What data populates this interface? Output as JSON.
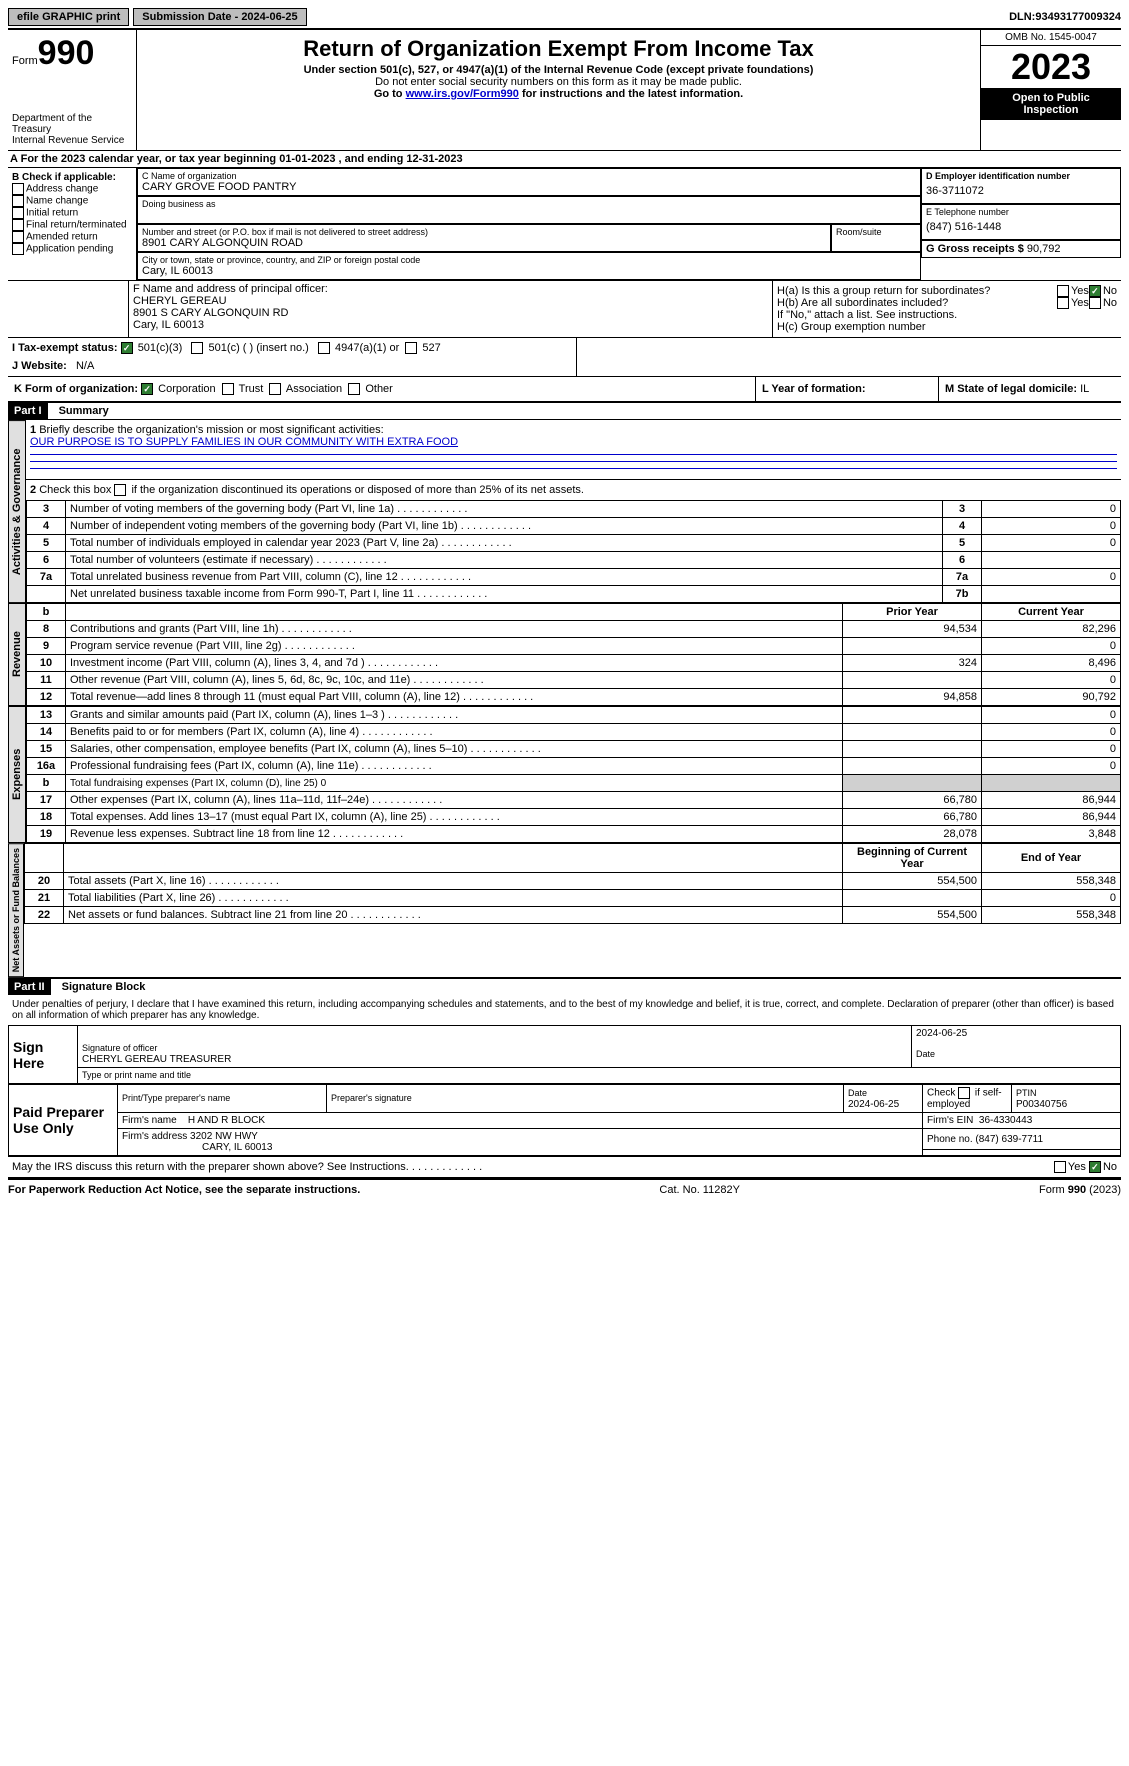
{
  "topbar": {
    "efile": "efile GRAPHIC print",
    "submission": "Submission Date - 2024-06-25",
    "dln_label": "DLN:",
    "dln": "93493177009324"
  },
  "header": {
    "form_label": "Form",
    "form_no": "990",
    "dept": "Department of the Treasury\nInternal Revenue Service",
    "title": "Return of Organization Exempt From Income Tax",
    "sub1": "Under section 501(c), 527, or 4947(a)(1) of the Internal Revenue Code (except private foundations)",
    "sub2": "Do not enter social security numbers on this form as it may be made public.",
    "sub3_pre": "Go to ",
    "sub3_link": "www.irs.gov/Form990",
    "sub3_post": " for instructions and the latest information.",
    "omb": "OMB No. 1545-0047",
    "year": "2023",
    "open": "Open to Public Inspection"
  },
  "line_a": "For the 2023 calendar year, or tax year beginning 01-01-2023   , and ending 12-31-2023",
  "col_b": {
    "title": "B Check if applicable:",
    "opts": [
      "Address change",
      "Name change",
      "Initial return",
      "Final return/terminated",
      "Amended return",
      "Application pending"
    ]
  },
  "col_c": {
    "name_label": "C Name of organization",
    "name": "CARY GROVE FOOD PANTRY",
    "dba_label": "Doing business as",
    "addr_label": "Number and street (or P.O. box if mail is not delivered to street address)",
    "addr": "8901 CARY ALGONQUIN ROAD",
    "room_label": "Room/suite",
    "city_label": "City or town, state or province, country, and ZIP or foreign postal code",
    "city": "Cary, IL  60013"
  },
  "col_d": {
    "ein_label": "D Employer identification number",
    "ein": "36-3711072",
    "tel_label": "E Telephone number",
    "tel": "(847) 516-1448",
    "gross_label": "G Gross receipts $",
    "gross": "90,792"
  },
  "officer": {
    "label": "F  Name and address of principal officer:",
    "name": "CHERYL GEREAU",
    "addr1": "8901 S CARY ALGONQUIN RD",
    "addr2": "Cary, IL  60013"
  },
  "h": {
    "a": "H(a)  Is this a group return for subordinates?",
    "b": "H(b) Are all subordinates included?",
    "b_note": "If \"No,\" attach a list. See instructions.",
    "c": "H(c) Group exemption number",
    "yes": "Yes",
    "no": "No"
  },
  "i": {
    "label": "I  Tax-exempt status:",
    "o1": "501(c)(3)",
    "o2": "501(c) (  ) (insert no.)",
    "o3": "4947(a)(1) or",
    "o4": "527"
  },
  "j": {
    "label": "J  Website:",
    "val": "N/A"
  },
  "k": {
    "label": "K Form of organization:",
    "o1": "Corporation",
    "o2": "Trust",
    "o3": "Association",
    "o4": "Other"
  },
  "l": {
    "label": "L Year of formation:",
    "val": ""
  },
  "m": {
    "label": "M State of legal domicile:",
    "val": "IL"
  },
  "part1": "Part I",
  "part1_title": "Summary",
  "summary": {
    "sections": {
      "gov": "Activities & Governance",
      "rev": "Revenue",
      "exp": "Expenses",
      "net": "Net Assets or Fund Balances"
    },
    "q1_label": "Briefly describe the organization's mission or most significant activities:",
    "q1_val": "OUR PURPOSE IS TO SUPPLY FAMILIES IN OUR COMMUNITY WITH EXTRA FOOD",
    "q2": "Check this box      if the organization discontinued its operations or disposed of more than 25% of its net assets.",
    "rows_gov": [
      {
        "n": "3",
        "label": "Number of voting members of the governing body (Part VI, line 1a)",
        "k": "3",
        "v": "0"
      },
      {
        "n": "4",
        "label": "Number of independent voting members of the governing body (Part VI, line 1b)",
        "k": "4",
        "v": "0"
      },
      {
        "n": "5",
        "label": "Total number of individuals employed in calendar year 2023 (Part V, line 2a)",
        "k": "5",
        "v": "0"
      },
      {
        "n": "6",
        "label": "Total number of volunteers (estimate if necessary)",
        "k": "6",
        "v": ""
      },
      {
        "n": "7a",
        "label": "Total unrelated business revenue from Part VIII, column (C), line 12",
        "k": "7a",
        "v": "0"
      },
      {
        "n": "",
        "label": "Net unrelated business taxable income from Form 990-T, Part I, line 11",
        "k": "7b",
        "v": ""
      }
    ],
    "col_headers": {
      "b": "b",
      "prior": "Prior Year",
      "curr": "Current Year"
    },
    "rows_rev": [
      {
        "n": "8",
        "label": "Contributions and grants (Part VIII, line 1h)",
        "p": "94,534",
        "c": "82,296"
      },
      {
        "n": "9",
        "label": "Program service revenue (Part VIII, line 2g)",
        "p": "",
        "c": "0"
      },
      {
        "n": "10",
        "label": "Investment income (Part VIII, column (A), lines 3, 4, and 7d )",
        "p": "324",
        "c": "8,496"
      },
      {
        "n": "11",
        "label": "Other revenue (Part VIII, column (A), lines 5, 6d, 8c, 9c, 10c, and 11e)",
        "p": "",
        "c": "0"
      },
      {
        "n": "12",
        "label": "Total revenue—add lines 8 through 11 (must equal Part VIII, column (A), line 12)",
        "p": "94,858",
        "c": "90,792"
      }
    ],
    "rows_exp": [
      {
        "n": "13",
        "label": "Grants and similar amounts paid (Part IX, column (A), lines 1–3 )",
        "p": "",
        "c": "0"
      },
      {
        "n": "14",
        "label": "Benefits paid to or for members (Part IX, column (A), line 4)",
        "p": "",
        "c": "0"
      },
      {
        "n": "15",
        "label": "Salaries, other compensation, employee benefits (Part IX, column (A), lines 5–10)",
        "p": "",
        "c": "0"
      },
      {
        "n": "16a",
        "label": "Professional fundraising fees (Part IX, column (A), line 11e)",
        "p": "",
        "c": "0"
      },
      {
        "n": "b",
        "label": "Total fundraising expenses (Part IX, column (D), line 25) 0",
        "p": "GREY",
        "c": "GREY"
      },
      {
        "n": "17",
        "label": "Other expenses (Part IX, column (A), lines 11a–11d, 11f–24e)",
        "p": "66,780",
        "c": "86,944"
      },
      {
        "n": "18",
        "label": "Total expenses. Add lines 13–17 (must equal Part IX, column (A), line 25)",
        "p": "66,780",
        "c": "86,944"
      },
      {
        "n": "19",
        "label": "Revenue less expenses. Subtract line 18 from line 12",
        "p": "28,078",
        "c": "3,848"
      }
    ],
    "net_headers": {
      "b": "Beginning of Current Year",
      "e": "End of Year"
    },
    "rows_net": [
      {
        "n": "20",
        "label": "Total assets (Part X, line 16)",
        "p": "554,500",
        "c": "558,348"
      },
      {
        "n": "21",
        "label": "Total liabilities (Part X, line 26)",
        "p": "",
        "c": "0"
      },
      {
        "n": "22",
        "label": "Net assets or fund balances. Subtract line 21 from line 20",
        "p": "554,500",
        "c": "558,348"
      }
    ]
  },
  "part2": "Part II",
  "part2_title": "Signature Block",
  "perjury": "Under penalties of perjury, I declare that I have examined this return, including accompanying schedules and statements, and to the best of my knowledge and belief, it is true, correct, and complete. Declaration of preparer (other than officer) is based on all information of which preparer has any knowledge.",
  "sign": {
    "here": "Sign Here",
    "date": "2024-06-25",
    "sig_label": "Signature of officer",
    "officer": "CHERYL GEREAU  TREASURER",
    "type_label": "Type or print name and title",
    "date_label": "Date"
  },
  "paid": {
    "label": "Paid Preparer Use Only",
    "col1": "Print/Type preparer's name",
    "col2": "Preparer's signature",
    "col3": "Date",
    "date": "2024-06-25",
    "col4_a": "Check",
    "col4_b": "if self-employed",
    "col5": "PTIN",
    "ptin": "P00340756",
    "firm_name_label": "Firm's name",
    "firm_name": "H AND R BLOCK",
    "firm_ein_label": "Firm's EIN",
    "firm_ein": "36-4330443",
    "firm_addr_label": "Firm's address",
    "firm_addr1": "3202 NW HWY",
    "firm_addr2": "CARY, IL  60013",
    "phone_label": "Phone no.",
    "phone": "(847) 639-7711"
  },
  "discuss": "May the IRS discuss this return with the preparer shown above? See Instructions.",
  "footer": {
    "left": "For Paperwork Reduction Act Notice, see the separate instructions.",
    "mid": "Cat. No. 11282Y",
    "right_a": "Form ",
    "right_b": "990",
    "right_c": " (2023)"
  }
}
